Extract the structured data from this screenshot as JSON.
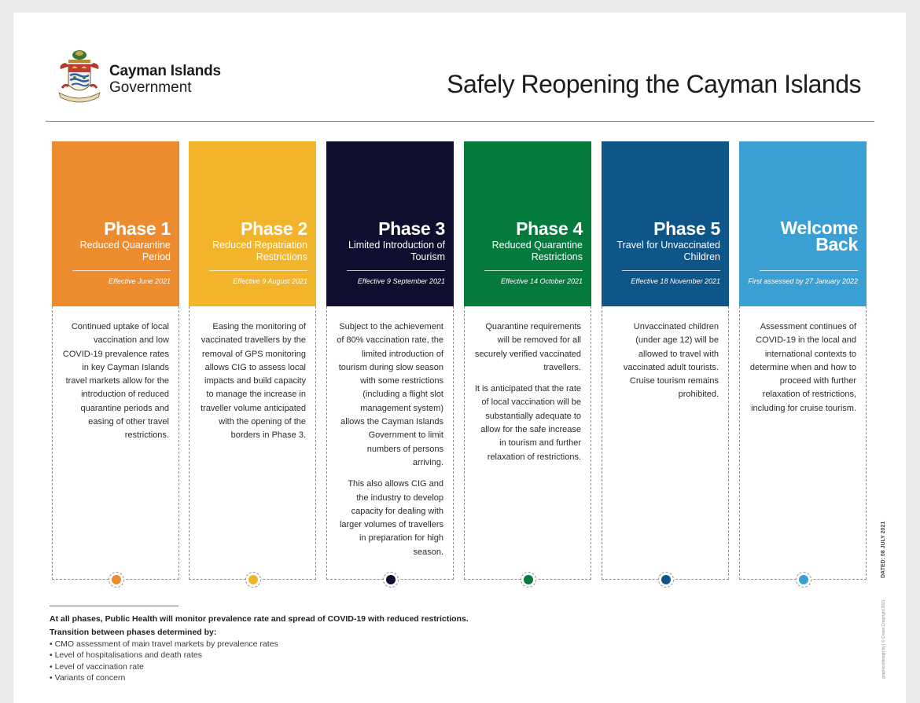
{
  "header": {
    "org_line1": "Cayman Islands",
    "org_line2": "Government",
    "title": "Safely Reopening the Cayman Islands"
  },
  "phases": [
    {
      "title": "Phase 1",
      "subtitle": "Reduced Quarantine Period",
      "date": "Effective June 2021",
      "color": "#ec8c2f",
      "body": [
        "Continued uptake of local vaccination and low COVID-19 prevalence rates in key Cayman Islands travel markets allow for the introduction of reduced quarantine periods and easing of other travel restrictions."
      ]
    },
    {
      "title": "Phase 2",
      "subtitle": "Reduced Repatriation Restrictions",
      "date": "Effective 9 August 2021",
      "color": "#f1b42a",
      "body": [
        "Easing the monitoring of vaccinated travellers by the removal of GPS monitoring allows CIG to assess local impacts and build capacity to manage the increase in traveller volume anticipated with the opening of the borders in Phase 3."
      ]
    },
    {
      "title": "Phase 3",
      "subtitle": "Limited Introduction of Tourism",
      "date": "Effective 9 September 2021",
      "color": "#100e2e",
      "body": [
        "Subject to the achievement of 80% vaccination rate, the limited introduction of tourism during slow season with some restrictions (including a flight slot management system) allows the Cayman Islands Government to limit numbers of persons arriving.",
        "This also allows CIG and the industry to develop capacity for dealing with larger volumes of travellers in preparation for high season."
      ]
    },
    {
      "title": "Phase 4",
      "subtitle": "Reduced Quarantine Restrictions",
      "date": "Effective 14 October 2021",
      "color": "#057a3d",
      "body": [
        "Quarantine requirements will be removed for all securely verified vaccinated travellers.",
        "It is anticipated that the rate of local vaccination will be substantially adequate to allow for the safe increase in tourism and further relaxation of restrictions."
      ]
    },
    {
      "title": "Phase 5",
      "subtitle": "Travel for Unvaccinated Children",
      "date": "Effective 18 November 2021",
      "color": "#0e5589",
      "body": [
        "Unvaccinated children (under age 12) will be allowed to travel with vaccinated adult tourists. Cruise tourism remains prohibited."
      ]
    },
    {
      "title": "Welcome Back",
      "subtitle": "",
      "date": "First assessed by 27 January 2022",
      "color": "#3a9fd2",
      "body": [
        "Assessment continues of COVID-19 in the local and international contexts to determine when and how to proceed with further relaxation of restrictions, including for cruise tourism."
      ]
    }
  ],
  "footer": {
    "statement": "At all phases, Public Health will monitor prevalence rate and spread of COVID-19 with reduced restrictions.",
    "transition_heading": "Transition between phases determined by:",
    "criteria": [
      "• CMO assessment of main travel markets by prevalence rates",
      "• Level of hospitalisations and death rates",
      "• Level of vaccination rate",
      "• Variants of concern"
    ],
    "dated": "DATED: 08 JULY 2021",
    "credit": "graphics/design by | © Crown Copyright 2021"
  }
}
